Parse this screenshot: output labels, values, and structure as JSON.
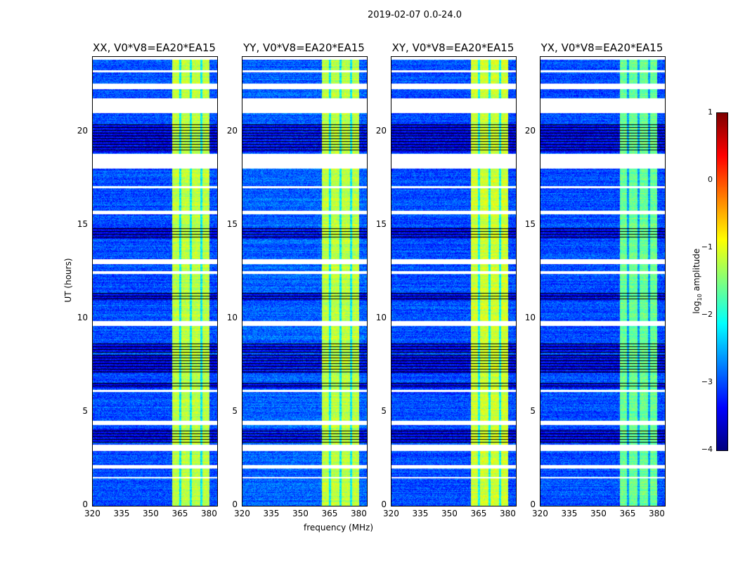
{
  "suptitle": "2019-02-07 0.0-24.0",
  "chart_data": {
    "type": "heatmap",
    "title": "2019-02-07 0.0-24.0",
    "xlabel": "frequency (MHz)",
    "ylabel": "UT (hours)",
    "xlim": [
      320,
      384
    ],
    "ylim": [
      0,
      24
    ],
    "xticks": [
      "320",
      "335",
      "350",
      "365",
      "380"
    ],
    "yticks": [
      "0",
      "5",
      "10",
      "15",
      "20"
    ],
    "panels": [
      {
        "title": "XX, V0*V8=EA20*EA15",
        "background_log_amp": -3.0,
        "band_log_amp": -1.2
      },
      {
        "title": "YY, V0*V8=EA20*EA15",
        "background_log_amp": -2.9,
        "band_log_amp": -1.2
      },
      {
        "title": "XY, V0*V8=EA20*EA15",
        "background_log_amp": -3.0,
        "band_log_amp": -1.1
      },
      {
        "title": "YX, V0*V8=EA20*EA15",
        "background_log_amp": -3.0,
        "band_log_amp": -1.6
      }
    ],
    "rfi_band_mhz": [
      360.5,
      380
    ],
    "rfi_band_notches_mhz": [
      364.8,
      370.2,
      375.6
    ],
    "flagged_hours": [
      [
        23.85,
        24
      ],
      [
        23.2,
        23.3
      ],
      [
        22.3,
        22.6
      ],
      [
        21.0,
        21.8
      ],
      [
        18.05,
        18.85
      ],
      [
        17.0,
        17.1
      ],
      [
        15.6,
        15.8
      ],
      [
        12.95,
        13.2
      ],
      [
        12.4,
        12.55
      ],
      [
        9.65,
        9.9
      ],
      [
        6.1,
        6.2
      ],
      [
        4.35,
        4.55
      ],
      [
        2.95,
        3.3
      ],
      [
        2.0,
        2.2
      ],
      [
        1.5,
        1.55
      ]
    ],
    "dark_hours": [
      [
        18.9,
        20.4
      ],
      [
        14.3,
        14.9
      ],
      [
        11.0,
        11.4
      ],
      [
        7.1,
        8.1
      ],
      [
        6.3,
        6.6
      ],
      [
        3.4,
        4.1
      ],
      [
        8.2,
        8.7
      ]
    ],
    "colorbar": {
      "label": "log10 amplitude",
      "range": [
        -4,
        1
      ],
      "ticks": [
        "1",
        "0",
        "−1",
        "−2",
        "−3",
        "−4"
      ],
      "colormap": "jet"
    }
  }
}
